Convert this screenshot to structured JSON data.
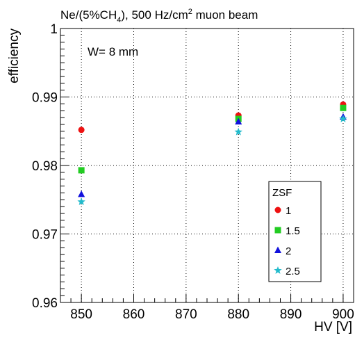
{
  "chart_data": {
    "type": "scatter",
    "title": {
      "prefix": "Ne/(5%CH",
      "sub": "4",
      "middle": "), 500 Hz/cm",
      "sup": "2",
      "suffix": " muon beam"
    },
    "xlabel": "HV [V]",
    "ylabel": "efficiency",
    "annotation": "W= 8 mm",
    "xlim": [
      846,
      902
    ],
    "ylim": [
      0.96,
      1.0
    ],
    "x_ticks": [
      850,
      860,
      870,
      880,
      890,
      900
    ],
    "x_tick_labels": [
      "850",
      "860",
      "870",
      "880",
      "890",
      "900"
    ],
    "y_ticks": [
      0.96,
      0.97,
      0.98,
      0.99,
      1.0
    ],
    "y_tick_labels": [
      "0.96",
      "0.97",
      "0.98",
      "0.99",
      "1"
    ],
    "grid": true,
    "legend": {
      "title": "ZSF",
      "placement": "lower-right"
    },
    "series": [
      {
        "name": "1",
        "marker": "circle",
        "color": "#ee1111",
        "points": [
          [
            850,
            0.9852
          ],
          [
            880,
            0.9873
          ],
          [
            900,
            0.9889
          ]
        ]
      },
      {
        "name": "1.5",
        "marker": "square",
        "color": "#22cc22",
        "points": [
          [
            850,
            0.9793
          ],
          [
            880,
            0.9868
          ],
          [
            900,
            0.9884
          ]
        ]
      },
      {
        "name": "2",
        "marker": "triangle",
        "color": "#1111dd",
        "points": [
          [
            850,
            0.9758
          ],
          [
            880,
            0.9864
          ],
          [
            900,
            0.9871
          ]
        ]
      },
      {
        "name": "2.5",
        "marker": "star",
        "color": "#22bbcc",
        "points": [
          [
            850,
            0.9747
          ],
          [
            880,
            0.9849
          ],
          [
            900,
            0.9868
          ]
        ]
      }
    ]
  }
}
